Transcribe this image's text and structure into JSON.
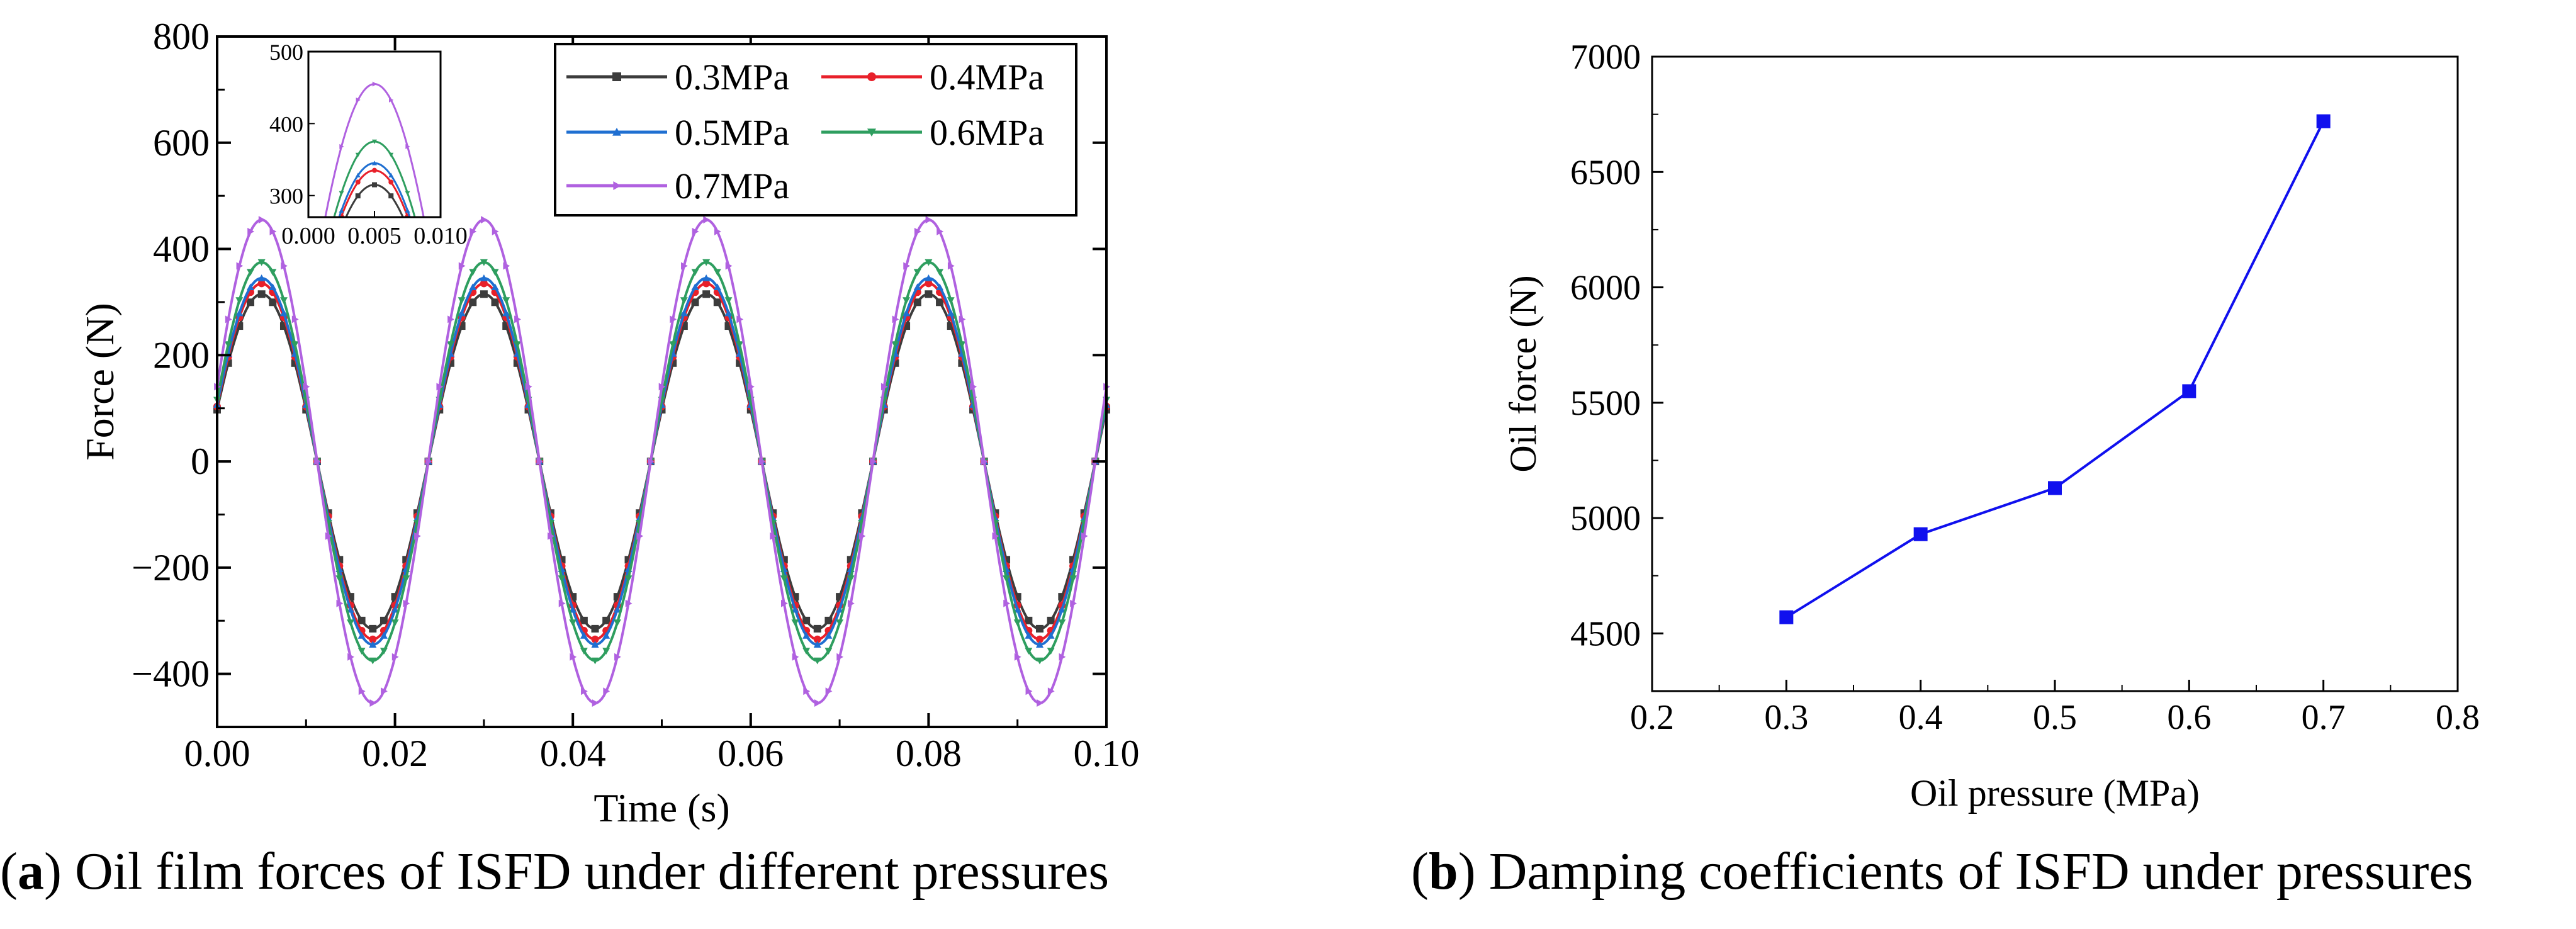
{
  "captions": {
    "a": {
      "letter": "a",
      "text": " Oil film forces of ISFD under different pressures"
    },
    "b": {
      "letter": "b",
      "text": " Damping coefficients of ISFD under pressures"
    }
  },
  "chart_data": [
    {
      "id": "a",
      "type": "line",
      "xlabel": "Time (s)",
      "ylabel": "Force (N)",
      "xlim": [
        0,
        0.1
      ],
      "ylim": [
        -500,
        800
      ],
      "xticks": [
        0.0,
        0.02,
        0.04,
        0.06,
        0.08,
        0.1
      ],
      "xtick_labels": [
        "0.00",
        "0.02",
        "0.04",
        "0.06",
        "0.08",
        "0.10"
      ],
      "yticks": [
        -400,
        -200,
        0,
        200,
        400,
        600,
        800
      ],
      "ytick_labels": [
        "−400",
        "−200",
        "0",
        "200",
        "400",
        "600",
        "800"
      ],
      "grid": false,
      "legend_position": "top-right",
      "waveform": {
        "shape": "sine",
        "period_s": 0.025,
        "offset_s": -0.00125,
        "x_step_s": 0.00125
      },
      "series": [
        {
          "name": "0.3MPa",
          "amplitude": 315,
          "color": "#3c3c3c",
          "marker": "square"
        },
        {
          "name": "0.4MPa",
          "amplitude": 335,
          "color": "#e8202a",
          "marker": "circle"
        },
        {
          "name": "0.5MPa",
          "amplitude": 345,
          "color": "#1f6fd1",
          "marker": "triangle-up"
        },
        {
          "name": "0.6MPa",
          "amplitude": 375,
          "color": "#2e9e5f",
          "marker": "triangle-down"
        },
        {
          "name": "0.7MPa",
          "amplitude": 455,
          "color": "#b061e0",
          "marker": "triangle-right"
        }
      ],
      "inset": {
        "xlim": [
          0,
          0.01
        ],
        "ylim": [
          270,
          500
        ],
        "xticks": [
          0.0,
          0.005,
          0.01
        ],
        "xtick_labels": [
          "0.000",
          "0.005",
          "0.010"
        ],
        "yticks": [
          300,
          400,
          500
        ],
        "ytick_labels": [
          "300",
          "400",
          "500"
        ]
      }
    },
    {
      "id": "b",
      "type": "line",
      "xlabel": "Oil pressure (MPa)",
      "ylabel": "Oil force (N)",
      "xlim": [
        0.2,
        0.8
      ],
      "ylim": [
        4250,
        7000
      ],
      "xticks": [
        0.2,
        0.3,
        0.4,
        0.5,
        0.6,
        0.7,
        0.8
      ],
      "xtick_labels": [
        "0.2",
        "0.3",
        "0.4",
        "0.5",
        "0.6",
        "0.7",
        "0.8"
      ],
      "yticks": [
        4500,
        5000,
        5500,
        6000,
        6500,
        7000
      ],
      "ytick_labels": [
        "4500",
        "5000",
        "5500",
        "6000",
        "6500",
        "7000"
      ],
      "grid": false,
      "series": [
        {
          "x": [
            0.3,
            0.4,
            0.5,
            0.6,
            0.7
          ],
          "values": [
            4570,
            4930,
            5130,
            5550,
            6720
          ],
          "color": "#1010ee",
          "marker": "square"
        }
      ]
    }
  ]
}
